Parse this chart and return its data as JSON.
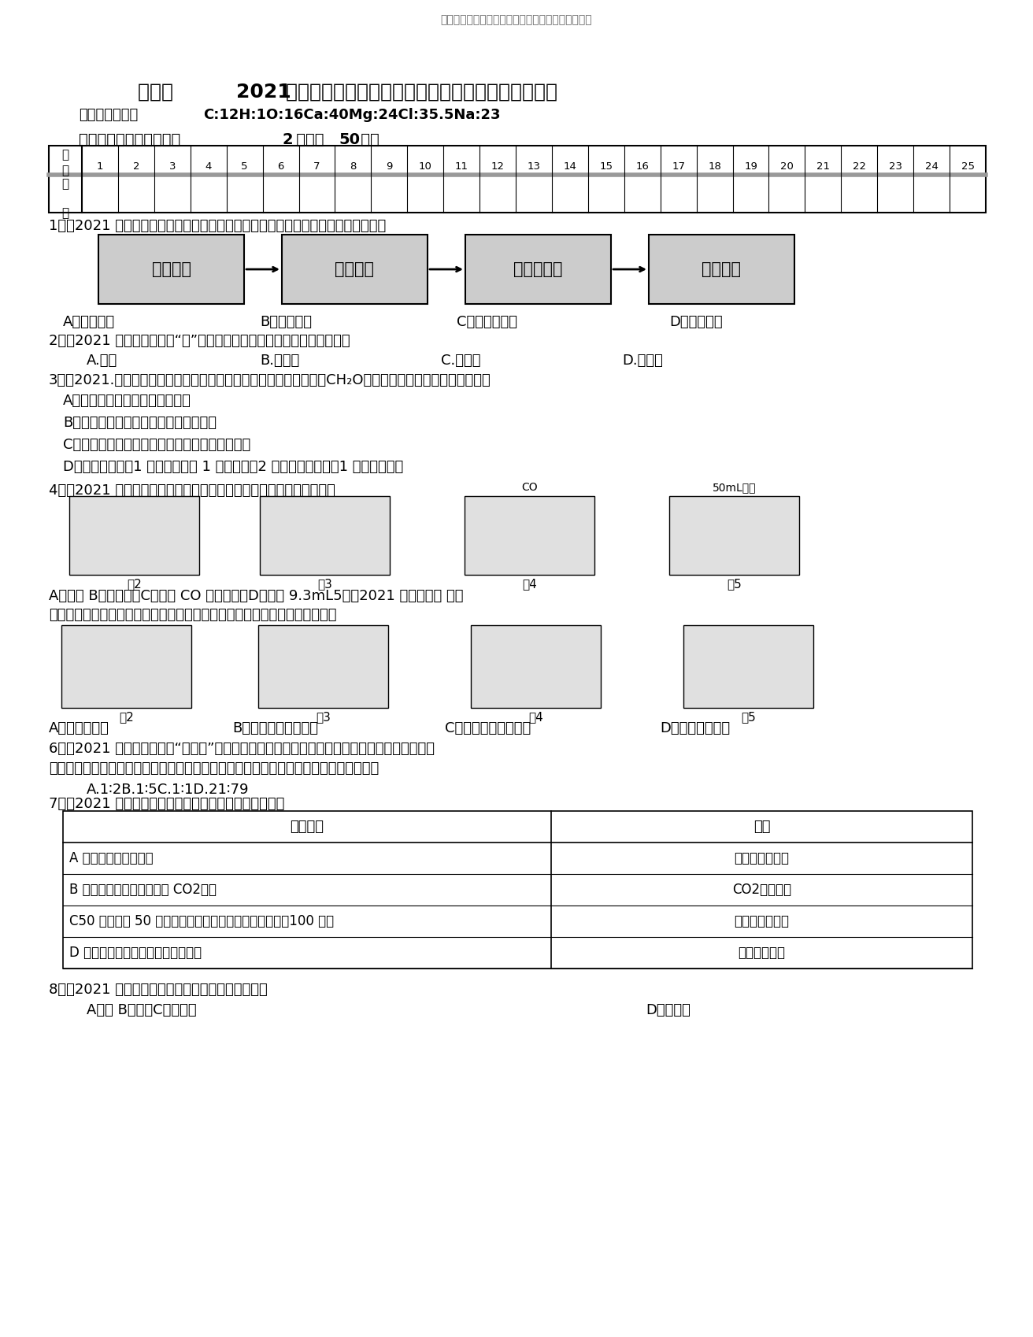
{
  "page_title": "泰安市九年级化学上学期期末模拟试题鲁教版含答案",
  "main_title_pre": "泰安市 ",
  "main_title_bold": "2021",
  "main_title_post": " 年九年级化学上学期期末模拟试题（鲁教版含答案）",
  "atomic_mass_label": "相对原子质量：",
  "atomic_mass_bold": "C:12H:1O:16Ca:40Mg:24Cl:35.5Na:23",
  "section1_pre": "一、单项选择（每题　　",
  "section1_bold": "2",
  "section1_mid": " 分，共 ",
  "section1_bold2": "50",
  "section1_end": " 分）",
  "q1_images": [
    "自然沉淀",
    "沙层过滤",
    "活性炭吸附",
    "杀菌消毒"
  ],
  "q1_options": [
    "A．自然积淀",
    "B．砂层过滤",
    "C．活性炭吸附",
    "D．杀菌消毒"
  ],
  "q2_options": [
    "A.硬水",
    "B.蒸馏水",
    "C.矿泉水",
    "D.自来水"
  ],
  "q3_options": [
    "A．从类型上看：甲醛属于有机物",
    "B．从变化上看：甲醛完好焚烧只生成水",
    "C．从宏观上看：甲醛由碳、氢、氧三种元素构成",
    "D．从微观上看：1 个甲醛分子由 1 个碳原子、2 个氢原子和　　　1 个氧原子构成"
  ],
  "q5_labels": [
    "图2",
    "图3",
    "图4",
    "图5"
  ],
  "q5_options": [
    "A．排水法集气",
    "B．向上排空气法集气",
    "C．用高锰酸钾制氧气",
    "D．检验二氧化碳"
  ],
  "q6_options": "A.1∶2B.1∶5C.1∶1D.21∶79",
  "q7_table_rows": [
    [
      "A 在花园中可闻到花香",
      "分子在不停运动"
    ],
    [
      "B 用肉眼不可以直接察看到 CO2分子",
      "CO2分子很小"
    ],
    [
      "C50 毫升水与 50 毫升乙醇混溶，混溶后整体积小于　　100 毫升",
      "分子之间有间隔"
    ],
    [
      "D 冰受热变成水，水受热变成水蒸气",
      "分子能够再分"
    ]
  ],
  "q8_options": [
    "A．汞 B．氧气C．金刚石",
    "D．硫酸铜"
  ],
  "bg_color": "#ffffff"
}
